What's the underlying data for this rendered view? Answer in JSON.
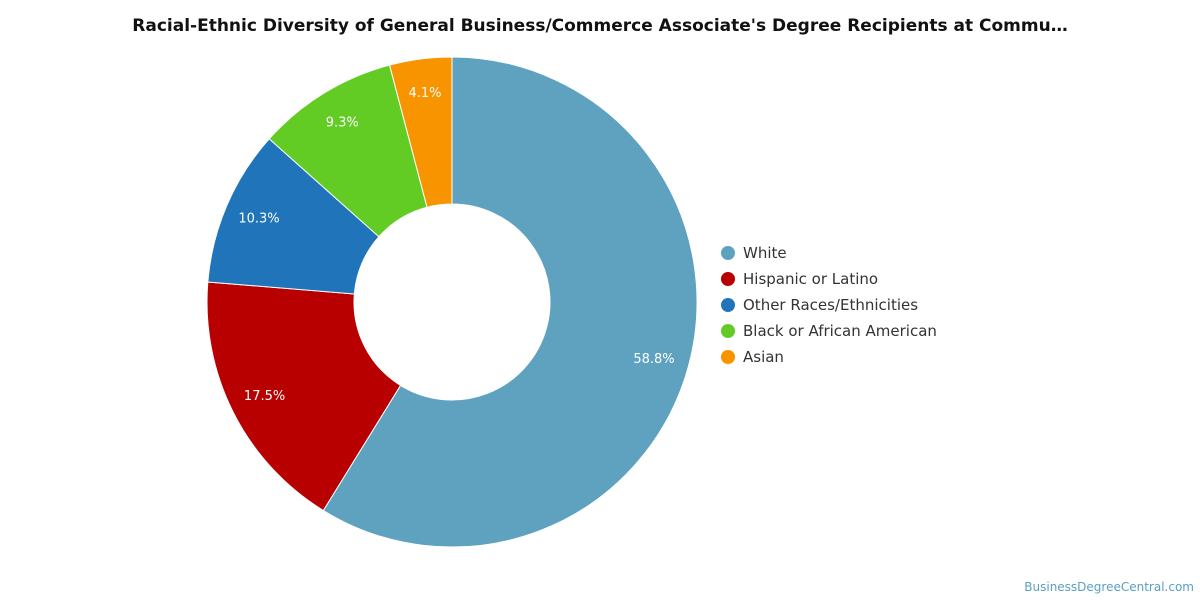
{
  "chart_data": {
    "type": "pie",
    "title": "Racial-Ethnic Diversity of General Business/Commerce Associate's Degree Recipients at Commu…",
    "series": [
      {
        "name": "White",
        "value": 58.8,
        "label": "58.8%",
        "color": "#5ea2bf"
      },
      {
        "name": "Hispanic or Latino",
        "value": 17.5,
        "label": "17.5%",
        "color": "#b80000"
      },
      {
        "name": "Other Races/Ethnicities",
        "value": 10.3,
        "label": "10.3%",
        "color": "#1f74ba"
      },
      {
        "name": "Black or African American",
        "value": 9.3,
        "label": "9.3%",
        "color": "#62cc25"
      },
      {
        "name": "Asian",
        "value": 4.1,
        "label": "4.1%",
        "color": "#f79400"
      }
    ],
    "legend_position": "right",
    "donut": true
  },
  "credit": "BusinessDegreeCentral.com"
}
